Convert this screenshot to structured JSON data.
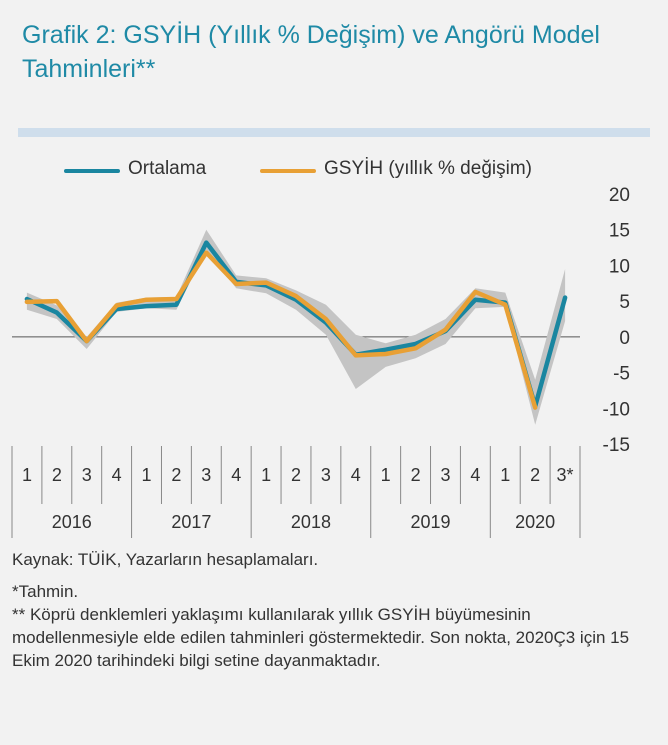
{
  "title": {
    "bold1": "Grafik 2: GSYİH ",
    "light": "(Yıllık % Değişim)",
    "bold2": " ve Angörü Model Tahminleri**"
  },
  "legend": {
    "series1": "Ortalama",
    "series2": "GSYİH (yıllık % değişim)"
  },
  "colors": {
    "ortalama": "#1a86a0",
    "gsyih": "#e8a035",
    "band": "#c4c4c4",
    "separator": "#cfdeec",
    "title": "#1f8aa6"
  },
  "chart_data": {
    "type": "line",
    "x_quarters": [
      "1",
      "2",
      "3",
      "4",
      "1",
      "2",
      "3",
      "4",
      "1",
      "2",
      "3",
      "4",
      "1",
      "2",
      "3",
      "4",
      "1",
      "2",
      "3*"
    ],
    "x_years": [
      "2016",
      "2017",
      "2018",
      "2019",
      "2020"
    ],
    "ylim": [
      -15,
      20
    ],
    "yticks": [
      "20",
      "15",
      "10",
      "5",
      "0",
      "-5",
      "-10",
      "-15"
    ],
    "series": [
      {
        "name": "Ortalama",
        "values": [
          5.3,
          3.4,
          -0.6,
          3.9,
          4.3,
          4.5,
          13.2,
          7.7,
          7.2,
          5.2,
          2.0,
          -2.5,
          -1.8,
          -1.0,
          0.8,
          5.2,
          4.8,
          -9.7,
          5.5
        ]
      },
      {
        "name": "GSYİH (yıllık % değişim)",
        "values": [
          4.9,
          5.0,
          -0.6,
          4.4,
          5.2,
          5.3,
          11.8,
          7.4,
          7.6,
          5.7,
          2.5,
          -2.6,
          -2.4,
          -1.6,
          1.0,
          6.3,
          4.5,
          -9.9,
          null
        ]
      }
    ],
    "band": {
      "upper": [
        6.2,
        4.4,
        0.0,
        4.8,
        5.5,
        5.6,
        15.0,
        8.6,
        8.2,
        6.5,
        4.5,
        0.3,
        -0.9,
        0.3,
        2.5,
        6.8,
        6.2,
        -6.0,
        9.5
      ],
      "lower": [
        3.8,
        2.5,
        -1.7,
        3.5,
        4.0,
        3.8,
        12.2,
        6.8,
        6.1,
        3.8,
        0.3,
        -7.3,
        -4.2,
        -3.0,
        -1.0,
        4.0,
        4.2,
        -12.3,
        2.2
      ]
    }
  },
  "notes": {
    "source": "Kaynak: TÜİK, Yazarların hesaplamaları.",
    "note1": "*Tahmin.",
    "note2": "** Köprü denklemleri yaklaşımı kullanılarak yıllık GSYİH büyümesinin modellenmesiyle elde edilen tahminleri göstermektedir. Son nokta, 2020Ç3 için 15 Ekim 2020 tarihindeki bilgi setine dayanmaktadır."
  }
}
